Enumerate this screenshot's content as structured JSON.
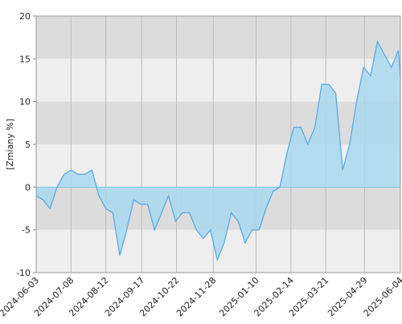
{
  "chart_data": {
    "type": "area",
    "ylabel": "[Zmiany %]",
    "x": [
      "2024-06-03",
      "2024-06-10",
      "2024-06-17",
      "2024-06-24",
      "2024-07-01",
      "2024-07-08",
      "2024-07-15",
      "2024-07-22",
      "2024-07-29",
      "2024-08-05",
      "2024-08-12",
      "2024-08-19",
      "2024-08-26",
      "2024-09-02",
      "2024-09-09",
      "2024-09-16",
      "2024-09-23",
      "2024-09-30",
      "2024-10-07",
      "2024-10-14",
      "2024-10-21",
      "2024-10-28",
      "2024-11-04",
      "2024-11-11",
      "2024-11-18",
      "2024-11-25",
      "2024-12-02",
      "2024-12-09",
      "2024-12-16",
      "2024-12-23",
      "2024-12-30",
      "2025-01-06",
      "2025-01-13",
      "2025-01-20",
      "2025-01-27",
      "2025-02-03",
      "2025-02-10",
      "2025-02-17",
      "2025-02-24",
      "2025-03-03",
      "2025-03-10",
      "2025-03-17",
      "2025-03-24",
      "2025-03-31",
      "2025-04-07",
      "2025-04-14",
      "2025-04-21",
      "2025-04-28",
      "2025-05-05",
      "2025-05-12",
      "2025-05-19",
      "2025-05-26",
      "2025-06-02",
      "2025-06-04"
    ],
    "series": [
      {
        "color": "#5aaae8",
        "values": [
          -1,
          -1.5,
          -2.5,
          0,
          1.5,
          2,
          1.5,
          1.5,
          2,
          -1,
          -2.5,
          -3,
          -8,
          -5,
          -1.5,
          -2,
          -2,
          -5,
          -3,
          -1,
          -4,
          -3,
          -3,
          -5,
          -6,
          -5,
          -8.5,
          -6.5,
          -3,
          -4,
          -6.5,
          -5,
          -5,
          -2.5,
          -0.5,
          0,
          4,
          7,
          7,
          5,
          7,
          12,
          12,
          11,
          2,
          5,
          10,
          14,
          13,
          17,
          15.5,
          14,
          16,
          13
        ]
      }
    ],
    "xlim": [
      "2024-06-03",
      "2025-06-04"
    ],
    "xticks": [
      "2024-06-03",
      "2024-07-08",
      "2024-08-12",
      "2024-09-17",
      "2024-10-22",
      "2024-11-28",
      "2025-01-10",
      "2025-02-14",
      "2025-03-21",
      "2025-04-29",
      "2025-06-04"
    ],
    "ylim": [
      -10,
      20
    ],
    "yticks": [
      -10,
      -5,
      0,
      5,
      10,
      15,
      20
    ],
    "grid": true
  }
}
